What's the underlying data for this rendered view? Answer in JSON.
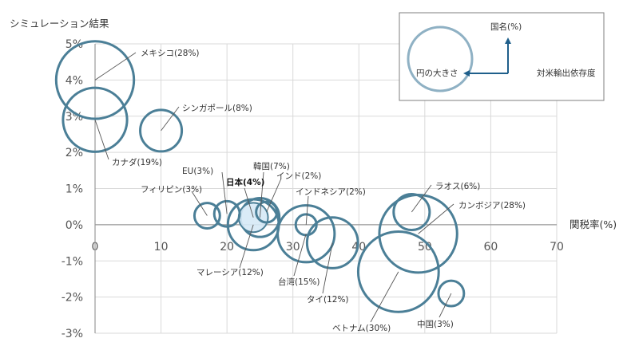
{
  "chart_data": {
    "type": "bubble",
    "title": "",
    "ylabel": "シミュレーション結果",
    "xlabel": "関税率(%)",
    "xlim": [
      0,
      70
    ],
    "ylim": [
      -3,
      5
    ],
    "xticks": [
      "0",
      "10",
      "20",
      "30",
      "40",
      "50",
      "60",
      "70"
    ],
    "yticks": [
      "5%",
      "4%",
      "3%",
      "2%",
      "1%",
      "0%",
      "-1%",
      "-2%",
      "-3%"
    ],
    "grid": true,
    "legend": {
      "placement": "top-right",
      "circle_label": "円の大きさ",
      "arrow_label": "対米輸出依存度",
      "up_label": "国名(%)"
    },
    "points": [
      {
        "name": "メキシコ",
        "x": 0,
        "y": 4.0,
        "share": 28,
        "label": "メキシコ(28%)",
        "highlight": false
      },
      {
        "name": "カナダ",
        "x": 0,
        "y": 2.9,
        "share": 19,
        "label": "カナダ(19%)",
        "highlight": false
      },
      {
        "name": "シンガポール",
        "x": 10,
        "y": 2.6,
        "share": 8,
        "label": "シンガポール(8%)",
        "highlight": false
      },
      {
        "name": "フィリピン",
        "x": 17,
        "y": 0.25,
        "share": 3,
        "label": "フィリピン(3%)",
        "highlight": false
      },
      {
        "name": "EU",
        "x": 20,
        "y": 0.3,
        "share": 3,
        "label": "EU(3%)",
        "highlight": false
      },
      {
        "name": "日本",
        "x": 24,
        "y": 0.2,
        "share": 4,
        "label": "日本(4%)",
        "highlight": true
      },
      {
        "name": "マレーシア",
        "x": 24,
        "y": 0.0,
        "share": 12,
        "label": "マレーシア(12%)",
        "highlight": false
      },
      {
        "name": "韓国",
        "x": 25,
        "y": 0.2,
        "share": 7,
        "label": "韓国(7%)",
        "highlight": false
      },
      {
        "name": "インド",
        "x": 26,
        "y": 0.35,
        "share": 2,
        "label": "インド(2%)",
        "highlight": false
      },
      {
        "name": "インドネシア",
        "x": 32,
        "y": 0.0,
        "share": 2,
        "label": "インドネシア(2%)",
        "highlight": false
      },
      {
        "name": "台湾",
        "x": 32,
        "y": -0.25,
        "share": 15,
        "label": "台湾(15%)",
        "highlight": false
      },
      {
        "name": "タイ",
        "x": 36,
        "y": -0.5,
        "share": 12,
        "label": "タイ(12%)",
        "highlight": false
      },
      {
        "name": "ラオス",
        "x": 48,
        "y": 0.35,
        "share": 6,
        "label": "ラオス(6%)",
        "highlight": false
      },
      {
        "name": "カンボジア",
        "x": 49,
        "y": -0.25,
        "share": 28,
        "label": "カンボジア(28%)",
        "highlight": false
      },
      {
        "name": "ベトナム",
        "x": 46,
        "y": -1.3,
        "share": 30,
        "label": "ベトナム(30%)",
        "highlight": false
      },
      {
        "name": "中国",
        "x": 54,
        "y": -1.9,
        "share": 3,
        "label": "中国(3%)",
        "highlight": false
      }
    ]
  },
  "colors": {
    "bubble_stroke": "#4b7f97",
    "highlight_fill": "#d6e9f6",
    "legend_circle": "#8fb1c4",
    "arrow": "#1f5f8b",
    "grid": "#d9d9d9",
    "axis": "#999999"
  }
}
